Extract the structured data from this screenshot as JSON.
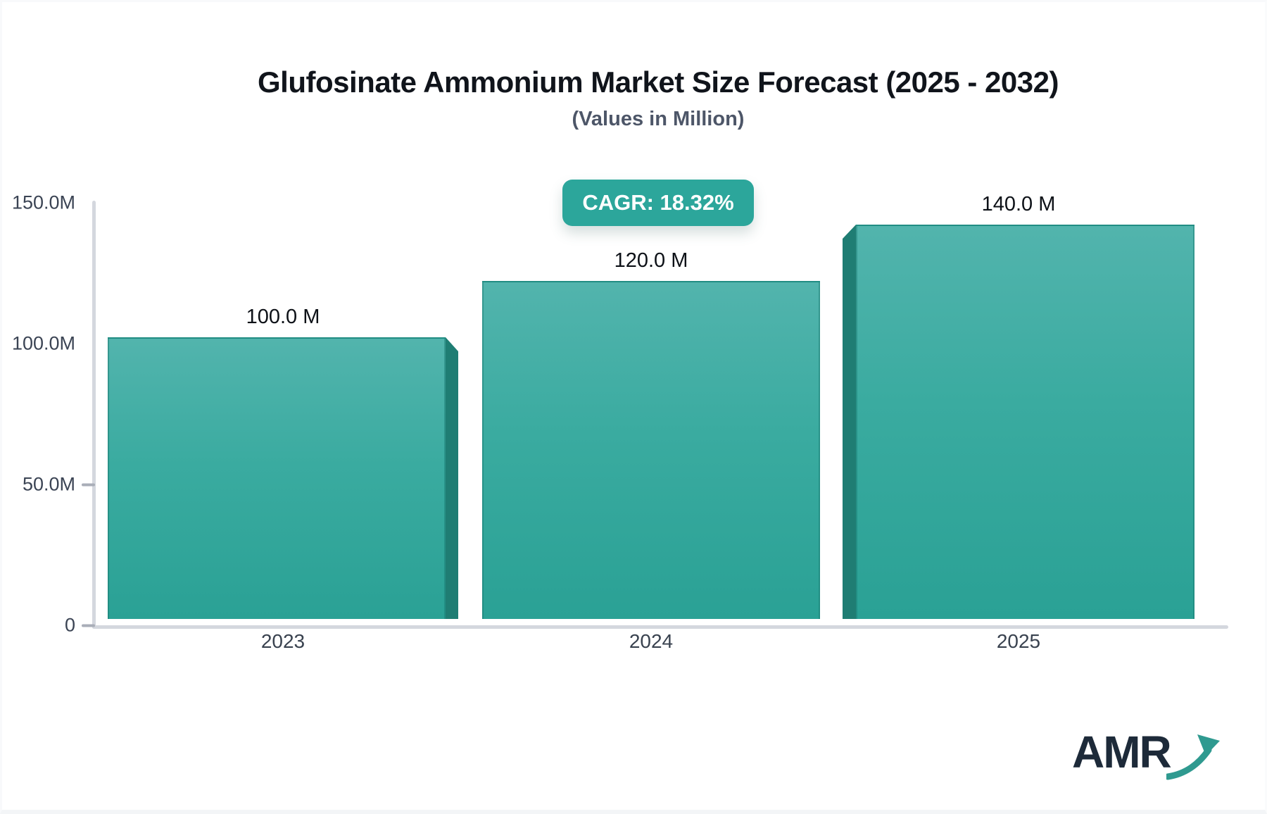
{
  "header": {
    "title": "Glufosinate Ammonium Market Size Forecast (2025 - 2032)",
    "subtitle": "(Values in Million)"
  },
  "badge": {
    "label": "CAGR: 18.32%"
  },
  "chart_data": {
    "type": "bar",
    "title": "Glufosinate Ammonium Market Size Forecast (2025 - 2032)",
    "subtitle": "(Values in Million)",
    "cagr_percent": 18.32,
    "categories": [
      "2023",
      "2024",
      "2025"
    ],
    "values": [
      100.0,
      120.0,
      140.0
    ],
    "value_labels": [
      "100.0 M",
      "120.0 M",
      "140.0 M"
    ],
    "value_unit": "Million",
    "y_axis": {
      "range": [
        0,
        150
      ],
      "ticks": [
        {
          "label": "150.0M",
          "value": 150,
          "dash": false
        },
        {
          "label": "100.0M",
          "value": 100,
          "dash": false
        },
        {
          "label": "50.0M",
          "value": 50,
          "dash": true
        },
        {
          "label": "0",
          "value": 0,
          "dash": true
        }
      ]
    },
    "grid": "off",
    "legend": "none",
    "bar_colors": {
      "top": "#52b4ad",
      "bottom": "#2aa195",
      "side_shade": "#1f7d73"
    }
  },
  "logo": {
    "text": "AMR"
  },
  "colors": {
    "accent_teal": "#2ca69b",
    "axis_line": "#d4d7de",
    "title_text": "#10141b",
    "subtitle_text": "#4d5668",
    "logo_navy": "#1d2a39",
    "logo_arrow": "#2f9a90"
  }
}
